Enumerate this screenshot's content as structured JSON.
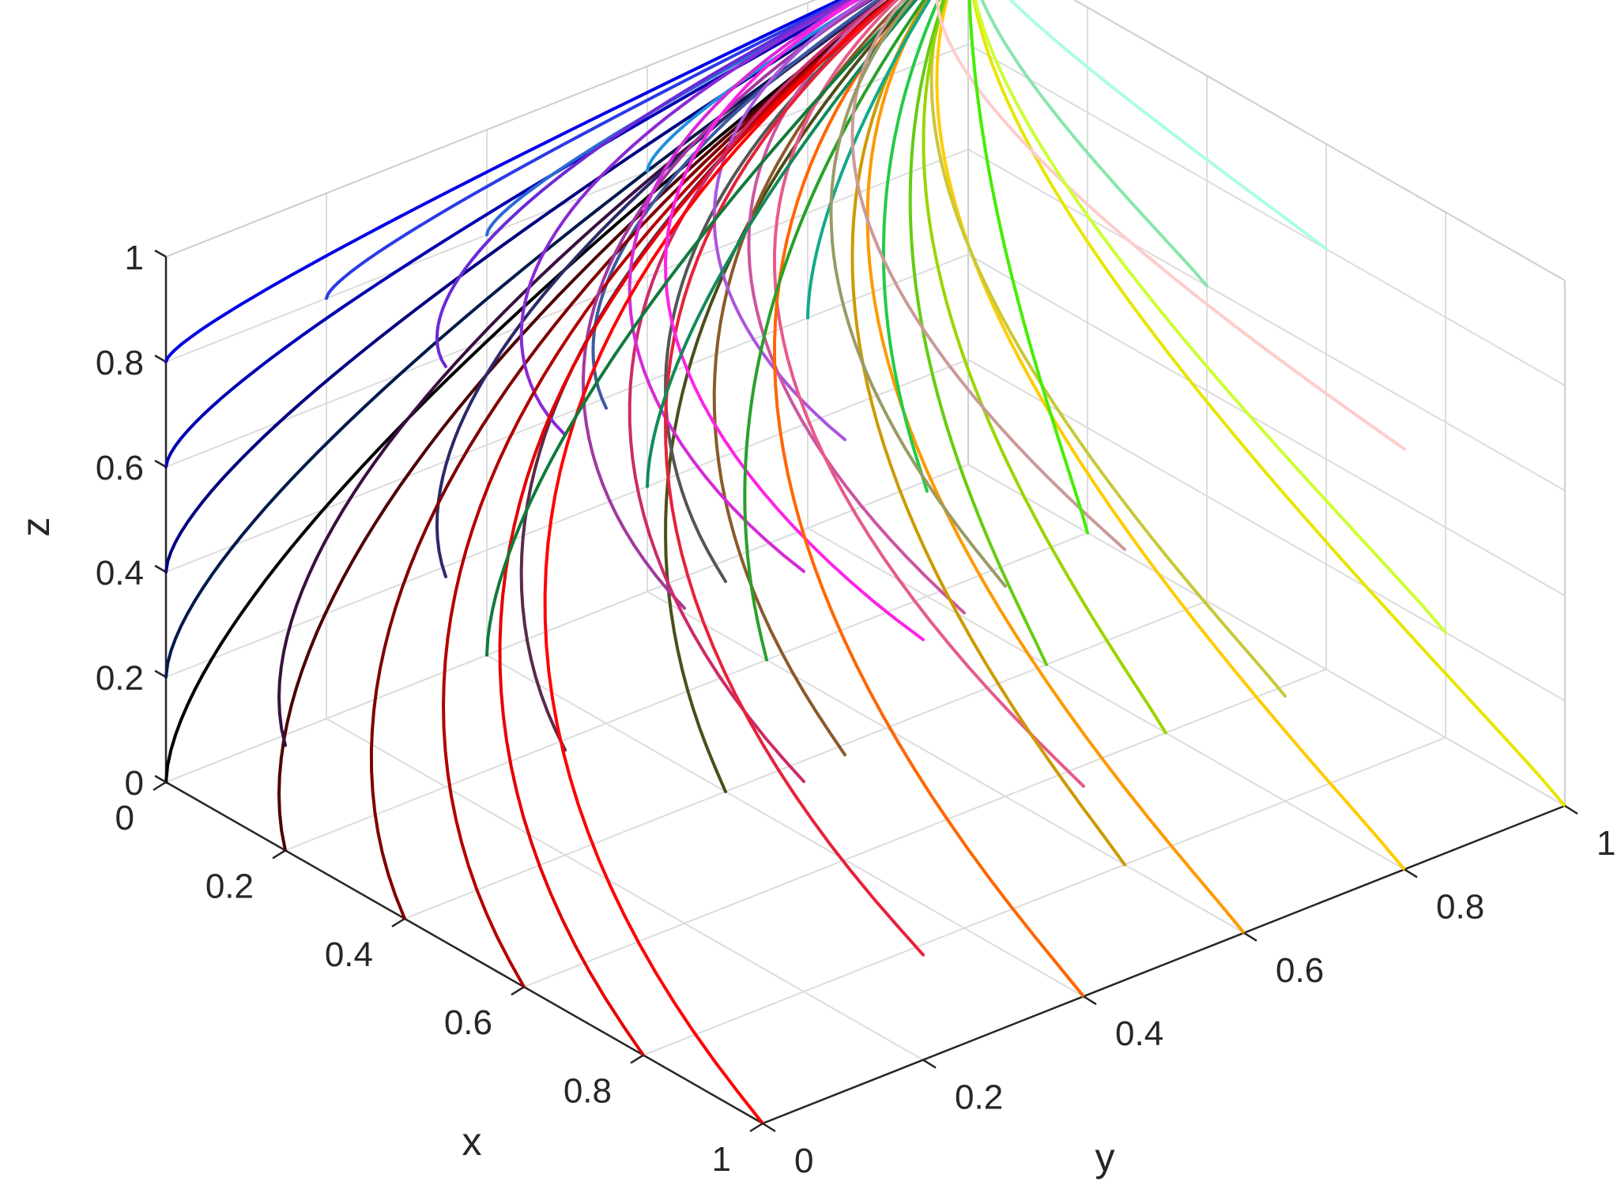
{
  "chart_data": {
    "type": "line3d",
    "title": "",
    "xlabel": "x",
    "ylabel": "y",
    "zlabel": "z",
    "xlim": [
      0,
      1
    ],
    "ylim": [
      0,
      1
    ],
    "zlim": [
      0,
      1
    ],
    "grid": true,
    "box": true,
    "xticks": [
      "0",
      "0.2",
      "0.4",
      "0.6",
      "0.8",
      "1"
    ],
    "yticks": [
      "0",
      "0.2",
      "0.4",
      "0.6",
      "0.8",
      "1"
    ],
    "zticks": [
      "0",
      "0.2",
      "0.4",
      "0.6",
      "0.8",
      "1"
    ],
    "endpoint": {
      "x": 0,
      "y": 1,
      "z": 1
    },
    "colormap": "rgb(x, y, z)",
    "series": [
      {
        "start": [
          0,
          0,
          0
        ],
        "color": "#000000"
      },
      {
        "start": [
          0,
          0,
          0.2
        ],
        "color": "#001a4d"
      },
      {
        "start": [
          0,
          0,
          0.4
        ],
        "color": "#000080"
      },
      {
        "start": [
          0,
          0,
          0.6
        ],
        "color": "#0000b3"
      },
      {
        "start": [
          0,
          0,
          0.8
        ],
        "color": "#0000e6"
      },
      {
        "start": [
          0,
          0.2,
          0.8
        ],
        "color": "#2a3be6"
      },
      {
        "start": [
          0,
          0.4,
          0.8
        ],
        "color": "#2a6ad6"
      },
      {
        "start": [
          0,
          0.6,
          0.8
        ],
        "color": "#1e90e0"
      },
      {
        "start": [
          0.2,
          0,
          0
        ],
        "color": "#4d0000"
      },
      {
        "start": [
          0.2,
          0,
          0.2
        ],
        "color": "#3a1040"
      },
      {
        "start": [
          0.2,
          0.2,
          0.4
        ],
        "color": "#2a2a6a"
      },
      {
        "start": [
          0.2,
          0.4,
          0.6
        ],
        "color": "#3b5aa0"
      },
      {
        "start": [
          0.2,
          0.2,
          0.8
        ],
        "color": "#6a2ad6"
      },
      {
        "start": [
          0.4,
          0,
          0
        ],
        "color": "#800000"
      },
      {
        "start": [
          0.4,
          0.4,
          0
        ],
        "color": "#4d4d1a"
      },
      {
        "start": [
          0.4,
          0.2,
          0.2
        ],
        "color": "#5a2a4a"
      },
      {
        "start": [
          0.4,
          0.4,
          0.4
        ],
        "color": "#555555"
      },
      {
        "start": [
          0.4,
          0.2,
          0.8
        ],
        "color": "#8a2ad6"
      },
      {
        "start": [
          0.6,
          0,
          0
        ],
        "color": "#b30000"
      },
      {
        "start": [
          0.6,
          0.4,
          0.2
        ],
        "color": "#8a5a2a"
      },
      {
        "start": [
          0.6,
          0.2,
          0.6
        ],
        "color": "#a03aa0"
      },
      {
        "start": [
          0.6,
          0.4,
          0.8
        ],
        "color": "#aa55dd"
      },
      {
        "start": [
          0.8,
          0,
          0
        ],
        "color": "#e60000"
      },
      {
        "start": [
          0.8,
          0.2,
          0.4
        ],
        "color": "#cc2a6a"
      },
      {
        "start": [
          0.8,
          0.4,
          0.6
        ],
        "color": "#cc55a0"
      },
      {
        "start": [
          0.8,
          0.2,
          0.8
        ],
        "color": "#d62ad6"
      },
      {
        "start": [
          1,
          0,
          0
        ],
        "color": "#ff0000"
      },
      {
        "start": [
          1,
          0.2,
          0.2
        ],
        "color": "#e6223a"
      },
      {
        "start": [
          1,
          0.4,
          0.4
        ],
        "color": "#e65a8a"
      },
      {
        "start": [
          1,
          0.2,
          0.8
        ],
        "color": "#ff22e6"
      },
      {
        "start": [
          1,
          0.4,
          0
        ],
        "color": "#ff6600"
      },
      {
        "start": [
          1,
          0.6,
          0
        ],
        "color": "#ff9900"
      },
      {
        "start": [
          1,
          0.8,
          0
        ],
        "color": "#ffcc00"
      },
      {
        "start": [
          1,
          1,
          0
        ],
        "color": "#e6e600"
      },
      {
        "start": [
          0.8,
          0.6,
          0
        ],
        "color": "#cc9a00"
      },
      {
        "start": [
          0.8,
          0.8,
          0.2
        ],
        "color": "#c8c83a"
      },
      {
        "start": [
          0.6,
          0.8,
          0
        ],
        "color": "#9ad600"
      },
      {
        "start": [
          0.4,
          0.8,
          0
        ],
        "color": "#66cc11"
      },
      {
        "start": [
          0.2,
          0.6,
          0
        ],
        "color": "#2aa02a"
      },
      {
        "start": [
          0,
          0.4,
          0
        ],
        "color": "#117a3a"
      },
      {
        "start": [
          0,
          0.6,
          0.2
        ],
        "color": "#118a5a"
      },
      {
        "start": [
          0.2,
          0.8,
          0.2
        ],
        "color": "#22cc44"
      },
      {
        "start": [
          0,
          0.8,
          0.4
        ],
        "color": "#11aa88"
      },
      {
        "start": [
          0.4,
          1,
          0.6
        ],
        "color": "#88e6aa"
      },
      {
        "start": [
          0.6,
          1,
          0.8
        ],
        "color": "#aaffdd"
      },
      {
        "start": [
          0.8,
          0.6,
          0.6
        ],
        "color": "#cc9999"
      },
      {
        "start": [
          1,
          0.8,
          0.8
        ],
        "color": "#ffcccc"
      },
      {
        "start": [
          0.2,
          1,
          0
        ],
        "color": "#44ee00"
      },
      {
        "start": [
          0.6,
          0.6,
          0.4
        ],
        "color": "#9a9a66"
      },
      {
        "start": [
          0.8,
          1,
          0.2
        ],
        "color": "#ccff33"
      }
    ]
  }
}
